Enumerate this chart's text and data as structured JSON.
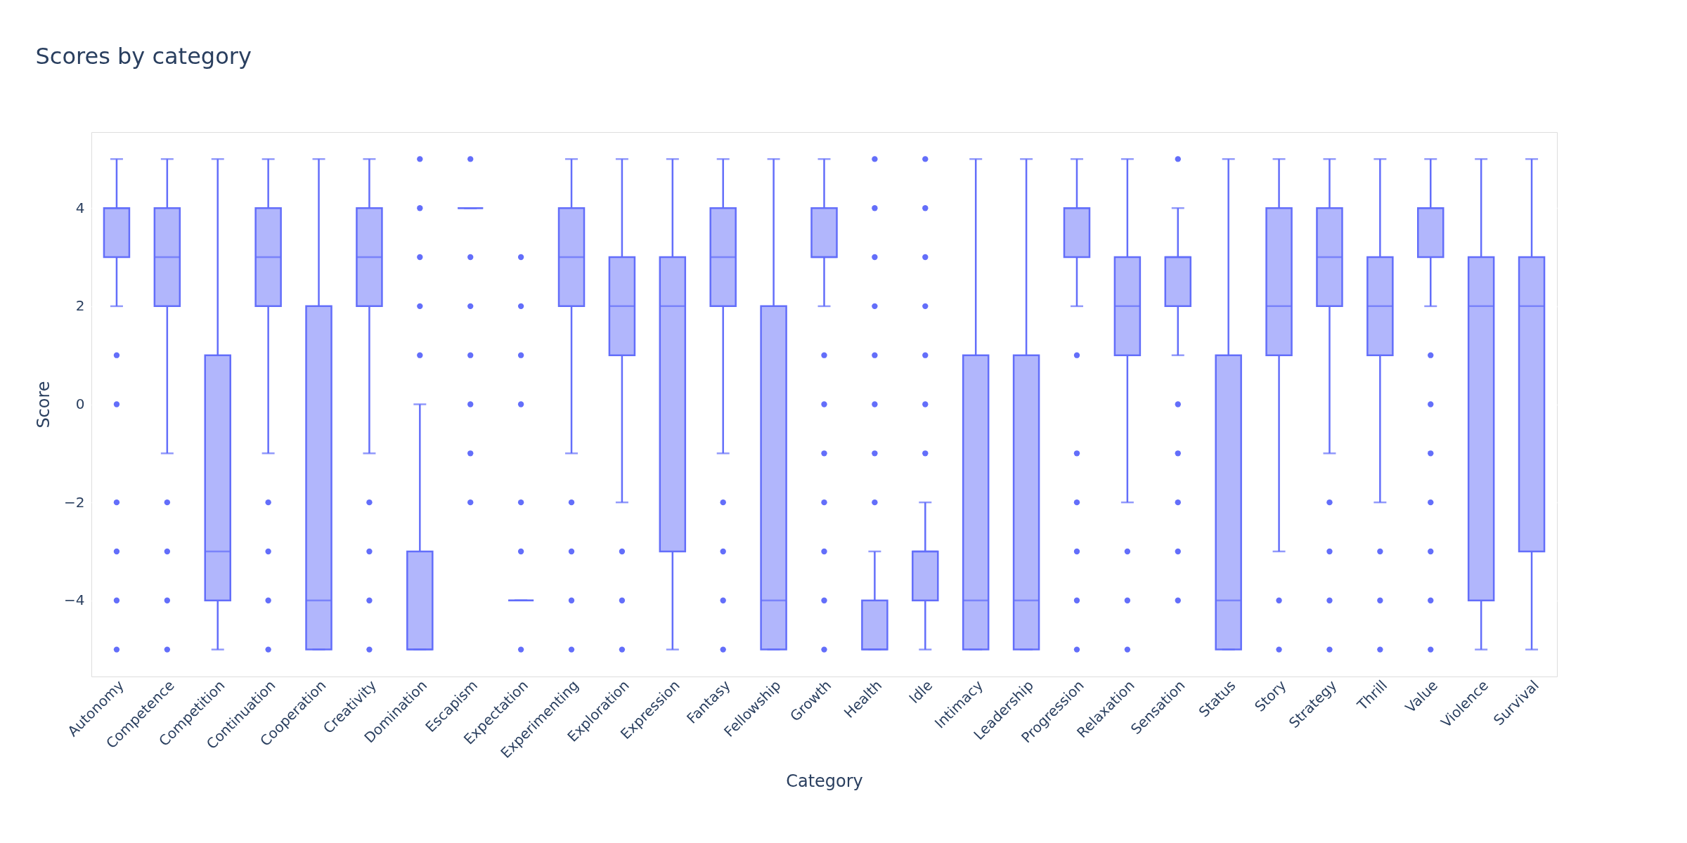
{
  "chart_data": {
    "type": "box",
    "title": "Scores by category",
    "xlabel": "Category",
    "ylabel": "Score",
    "color": "#636efa",
    "grid": "y",
    "ylim": [
      -5.55,
      5.55
    ],
    "yticks": [
      -4,
      -2,
      0,
      2,
      4
    ],
    "categories": [
      "Autonomy",
      "Competence",
      "Competition",
      "Continuation",
      "Cooperation",
      "Creativity",
      "Domination",
      "Escapism",
      "Expectation",
      "Experimenting",
      "Exploration",
      "Expression",
      "Fantasy",
      "Fellowship",
      "Growth",
      "Health",
      "Idle",
      "Intimacy",
      "Leadership",
      "Progression",
      "Relaxation",
      "Sensation",
      "Status",
      "Story",
      "Strategy",
      "Thrill",
      "Value",
      "Violence",
      "Survival"
    ],
    "boxes": [
      {
        "low": 2,
        "q1": 3,
        "median": 4,
        "q3": 4,
        "high": 5,
        "outliers": [
          1,
          0,
          -2,
          -3,
          -4,
          -5
        ]
      },
      {
        "low": -1,
        "q1": 2,
        "median": 3,
        "q3": 4,
        "high": 5,
        "outliers": [
          -2,
          -3,
          -4,
          -5
        ]
      },
      {
        "low": -5,
        "q1": -4,
        "median": -3,
        "q3": 1,
        "high": 5
      },
      {
        "low": -1,
        "q1": 2,
        "median": 3,
        "q3": 4,
        "high": 5,
        "outliers": [
          -2,
          -3,
          -4,
          -5
        ]
      },
      {
        "low": -5,
        "q1": -5,
        "median": -4,
        "q3": 2,
        "high": 5
      },
      {
        "low": -1,
        "q1": 2,
        "median": 3,
        "q3": 4,
        "high": 5,
        "outliers": [
          -2,
          -3,
          -4,
          -5
        ]
      },
      {
        "low": -5,
        "q1": -5,
        "median": -5,
        "q3": -3,
        "high": 0,
        "outliers": [
          1,
          2,
          3,
          4,
          5
        ]
      },
      {
        "low": 4,
        "q1": 4,
        "median": 4,
        "q3": 4,
        "high": 4,
        "outliers": [
          5,
          3,
          2,
          1,
          0,
          -1,
          -2
        ]
      },
      {
        "low": -4,
        "q1": -4,
        "median": -4,
        "q3": -4,
        "high": -4,
        "outliers": [
          3,
          2,
          1,
          0,
          -2,
          -3,
          -5
        ]
      },
      {
        "low": -1,
        "q1": 2,
        "median": 3,
        "q3": 4,
        "high": 5,
        "outliers": [
          -2,
          -3,
          -4,
          -5
        ]
      },
      {
        "low": -2,
        "q1": 1,
        "median": 2,
        "q3": 3,
        "high": 5,
        "outliers": [
          -3,
          -4,
          -5
        ]
      },
      {
        "low": -5,
        "q1": -3,
        "median": 2,
        "q3": 3,
        "high": 5
      },
      {
        "low": -1,
        "q1": 2,
        "median": 3,
        "q3": 4,
        "high": 5,
        "outliers": [
          -2,
          -3,
          -4,
          -5
        ]
      },
      {
        "low": -5,
        "q1": -5,
        "median": -4,
        "q3": 2,
        "high": 5
      },
      {
        "low": 2,
        "q1": 3,
        "median": 3,
        "q3": 4,
        "high": 5,
        "outliers": [
          1,
          0,
          -1,
          -2,
          -3,
          -4,
          -5
        ]
      },
      {
        "low": -5,
        "q1": -5,
        "median": -5,
        "q3": -4,
        "high": -3,
        "outliers": [
          5,
          4,
          3,
          2,
          1,
          0,
          -1,
          -2
        ]
      },
      {
        "low": -5,
        "q1": -4,
        "median": -3,
        "q3": -3,
        "high": -2,
        "outliers": [
          5,
          4,
          3,
          2,
          1,
          0,
          -1
        ]
      },
      {
        "low": -5,
        "q1": -5,
        "median": -4,
        "q3": 1,
        "high": 5
      },
      {
        "low": -5,
        "q1": -5,
        "median": -4,
        "q3": 1,
        "high": 5
      },
      {
        "low": 2,
        "q1": 3,
        "median": 4,
        "q3": 4,
        "high": 5,
        "outliers": [
          1,
          -1,
          -2,
          -3,
          -4,
          -5
        ]
      },
      {
        "low": -2,
        "q1": 1,
        "median": 2,
        "q3": 3,
        "high": 5,
        "outliers": [
          -3,
          -4,
          -5
        ]
      },
      {
        "low": 1,
        "q1": 2,
        "median": 3,
        "q3": 3,
        "high": 4,
        "outliers": [
          5,
          0,
          -1,
          -2,
          -3,
          -4
        ]
      },
      {
        "low": -5,
        "q1": -5,
        "median": -4,
        "q3": 1,
        "high": 5
      },
      {
        "low": -3,
        "q1": 1,
        "median": 2,
        "q3": 4,
        "high": 5,
        "outliers": [
          -4,
          -5
        ]
      },
      {
        "low": -1,
        "q1": 2,
        "median": 3,
        "q3": 4,
        "high": 5,
        "outliers": [
          -2,
          -3,
          -4,
          -5
        ]
      },
      {
        "low": -2,
        "q1": 1,
        "median": 2,
        "q3": 3,
        "high": 5,
        "outliers": [
          -3,
          -4,
          -5
        ]
      },
      {
        "low": 2,
        "q1": 3,
        "median": 4,
        "q3": 4,
        "high": 5,
        "outliers": [
          1,
          0,
          -1,
          -2,
          -3,
          -4,
          -5
        ]
      },
      {
        "low": -5,
        "q1": -4,
        "median": 2,
        "q3": 3,
        "high": 5
      },
      {
        "low": -5,
        "q1": -3,
        "median": 2,
        "q3": 3,
        "high": 5
      }
    ]
  }
}
